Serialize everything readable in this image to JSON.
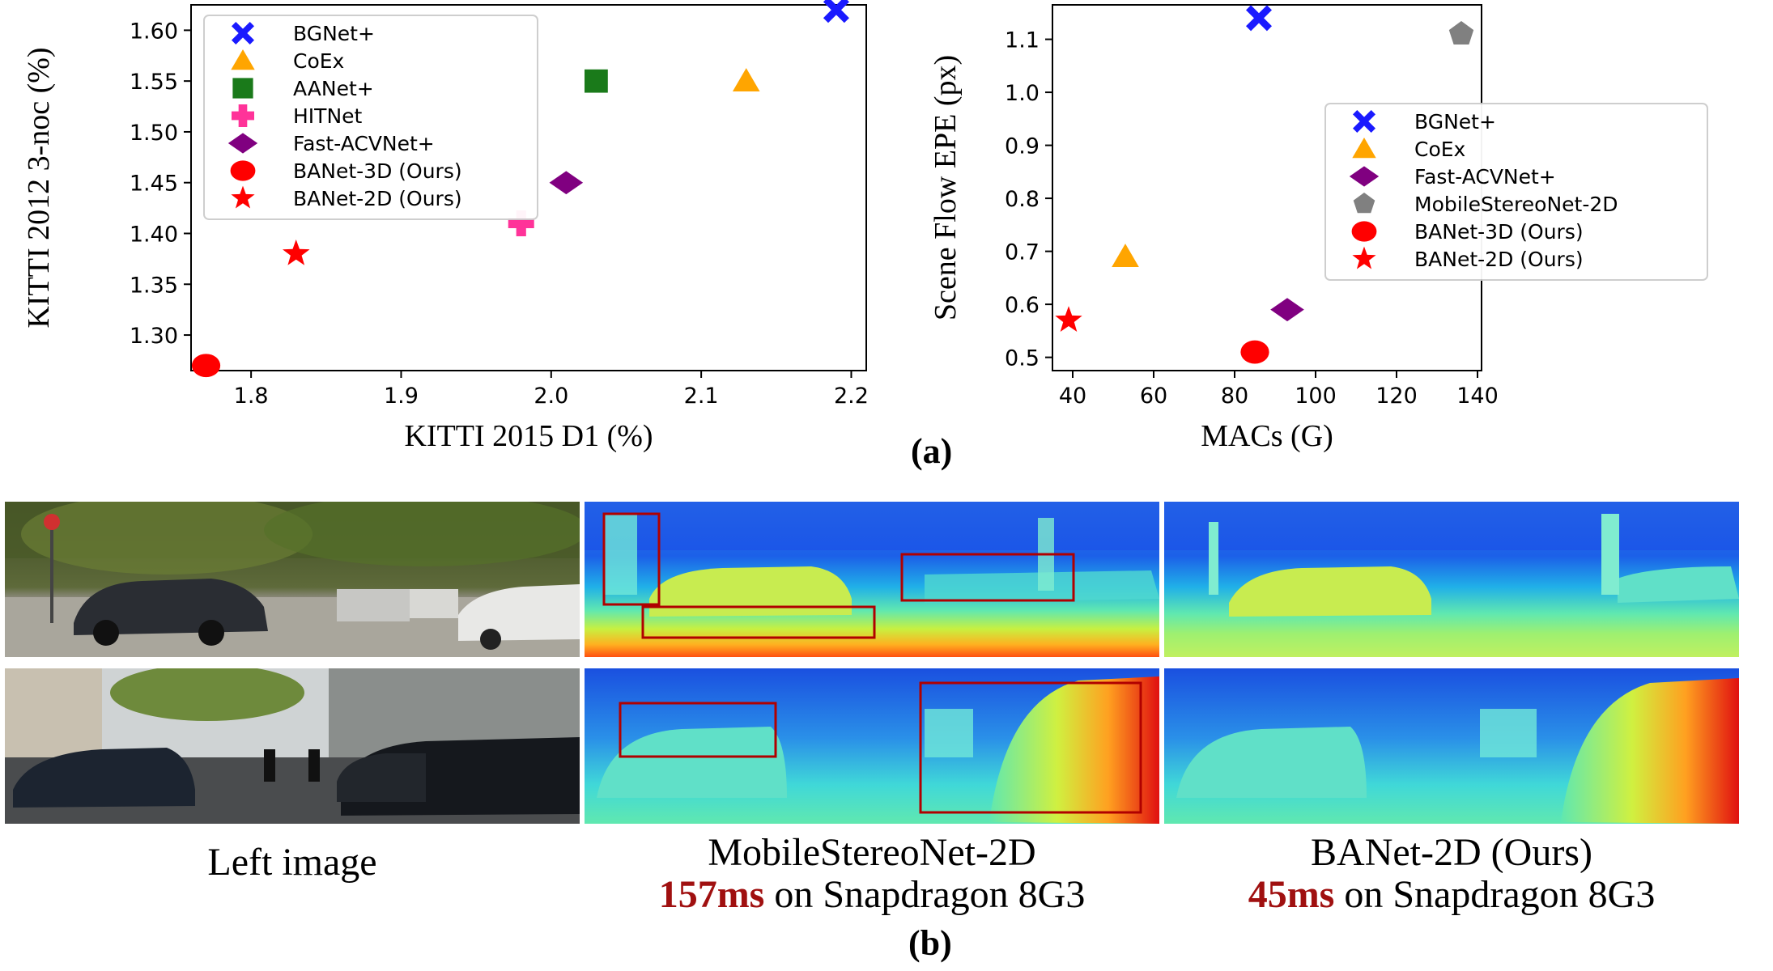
{
  "chart_data": [
    {
      "type": "scatter",
      "xlabel": "KITTI 2015 D1 (%)",
      "ylabel": "KITTI 2012 3-noc (%)",
      "xlim": [
        1.76,
        2.21
      ],
      "ylim": [
        1.265,
        1.625
      ],
      "x_ticks": [
        1.8,
        1.9,
        2.0,
        2.1,
        2.2
      ],
      "y_ticks": [
        1.3,
        1.35,
        1.4,
        1.45,
        1.5,
        1.55,
        1.6
      ],
      "x_tick_labels": [
        "1.8",
        "1.9",
        "2.0",
        "2.1",
        "2.2"
      ],
      "y_tick_labels": [
        "1.30",
        "1.35",
        "1.40",
        "1.45",
        "1.50",
        "1.55",
        "1.60"
      ],
      "legend_placement": "top-left",
      "series": [
        {
          "name": "BGNet+",
          "marker": "x-cross",
          "color": "#1a1aff",
          "x": 2.19,
          "y": 1.62
        },
        {
          "name": "CoEx",
          "marker": "triangle",
          "color": "#ffa500",
          "x": 2.13,
          "y": 1.55
        },
        {
          "name": "AANet+",
          "marker": "square",
          "color": "#1a7a1a",
          "x": 2.03,
          "y": 1.55
        },
        {
          "name": "HITNet",
          "marker": "plus",
          "color": "#ff3399",
          "x": 1.98,
          "y": 1.41
        },
        {
          "name": "Fast-ACVNet+",
          "marker": "diamond",
          "color": "#800080",
          "x": 2.01,
          "y": 1.45
        },
        {
          "name": "BANet-3D (Ours)",
          "marker": "circle",
          "color": "#ff0000",
          "x": 1.77,
          "y": 1.27
        },
        {
          "name": "BANet-2D (Ours)",
          "marker": "star",
          "color": "#ff0000",
          "x": 1.83,
          "y": 1.38
        }
      ]
    },
    {
      "type": "scatter",
      "xlabel": "MACs (G)",
      "ylabel": "Scene Flow EPE (px)",
      "xlim": [
        35,
        141
      ],
      "ylim": [
        0.475,
        1.165
      ],
      "x_ticks": [
        40,
        60,
        80,
        100,
        120,
        140
      ],
      "y_ticks": [
        0.5,
        0.6,
        0.7,
        0.8,
        0.9,
        1.0,
        1.1
      ],
      "x_tick_labels": [
        "40",
        "60",
        "80",
        "100",
        "120",
        "140"
      ],
      "y_tick_labels": [
        "0.5",
        "0.6",
        "0.7",
        "0.8",
        "0.9",
        "1.0",
        "1.1"
      ],
      "legend_placement": "center-right",
      "series": [
        {
          "name": "BGNet+",
          "marker": "x-cross",
          "color": "#1a1aff",
          "x": 86,
          "y": 1.14
        },
        {
          "name": "CoEx",
          "marker": "triangle",
          "color": "#ffa500",
          "x": 53,
          "y": 0.69
        },
        {
          "name": "Fast-ACVNet+",
          "marker": "diamond",
          "color": "#800080",
          "x": 93,
          "y": 0.59
        },
        {
          "name": "MobileStereoNet-2D",
          "marker": "pentagon",
          "color": "#808080",
          "x": 136,
          "y": 1.11
        },
        {
          "name": "BANet-3D (Ours)",
          "marker": "circle",
          "color": "#ff0000",
          "x": 85,
          "y": 0.51
        },
        {
          "name": "BANet-2D (Ours)",
          "marker": "star",
          "color": "#ff0000",
          "x": 39,
          "y": 0.57
        }
      ]
    }
  ],
  "panel_a_label": "(a)",
  "panel_b_label": "(b)",
  "images": {
    "left_caption": "Left image",
    "mid_caption_title": "MobileStereoNet-2D",
    "mid_caption_ms": "157ms",
    "mid_caption_rest": " on Snapdragon 8G3",
    "right_caption_title": "BANet-2D (Ours)",
    "right_caption_ms": "45ms",
    "right_caption_rest": " on Snapdragon 8G3"
  },
  "colors": {
    "highlight_box": "#b00000",
    "timing_text": "#a01010"
  }
}
